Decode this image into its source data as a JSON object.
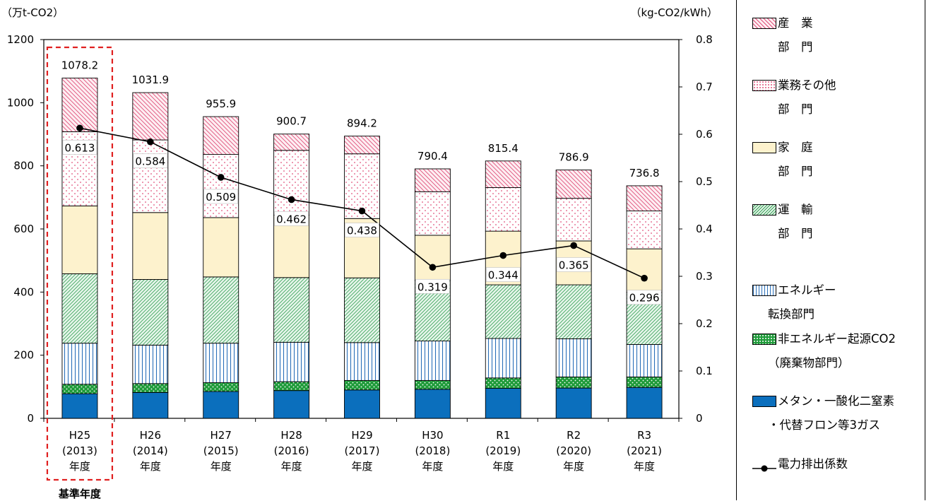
{
  "chart_data": {
    "type": "bar",
    "stacked": true,
    "left_axis_unit": "（万t-CO2）",
    "right_axis_unit": "（kg-CO2/kWh）",
    "ylim_left": [
      0,
      1200
    ],
    "yticks_left": [
      0,
      200,
      400,
      600,
      800,
      1000,
      1200
    ],
    "ylim_right": [
      0,
      0.8
    ],
    "yticks_right": [
      "0",
      "0.1",
      "0.2",
      "0.3",
      "0.4",
      "0.5",
      "0.6",
      "0.7",
      "0.8"
    ],
    "categories": [
      [
        "H25",
        "(2013)",
        "年度"
      ],
      [
        "H26",
        "(2014)",
        "年度"
      ],
      [
        "H27",
        "(2015)",
        "年度"
      ],
      [
        "H28",
        "(2016)",
        "年度"
      ],
      [
        "H29",
        "(2017)",
        "年度"
      ],
      [
        "H30",
        "(2018)",
        "年度"
      ],
      [
        "R1",
        "(2019)",
        "年度"
      ],
      [
        "R2",
        "(2020)",
        "年度"
      ],
      [
        "R3",
        "(2021)",
        "年度"
      ]
    ],
    "totals": [
      "1078.2",
      "1031.9",
      "955.9",
      "900.7",
      "894.2",
      "790.4",
      "815.4",
      "786.9",
      "736.8"
    ],
    "series": [
      {
        "name": "メタン・一酸化二窒素・代替フロン等3ガス",
        "color": "#0b6fbd",
        "values": [
          78,
          82,
          85,
          88,
          90,
          92,
          95,
          96,
          98
        ]
      },
      {
        "name": "非エネルギー起源CO2（廃棄物部門）",
        "color": "#1f9b3a",
        "values": [
          30,
          28,
          28,
          28,
          30,
          28,
          33,
          35,
          33
        ]
      },
      {
        "name": "エネルギー転換部門",
        "color": "#2a6fb8",
        "values": [
          130,
          122,
          125,
          125,
          120,
          125,
          125,
          121,
          103
        ]
      },
      {
        "name": "運輸部門",
        "color": "#3aa35a",
        "values": [
          220,
          208,
          210,
          205,
          205,
          192,
          170,
          171,
          165
        ]
      },
      {
        "name": "家庭部門",
        "color": "#fdf2cd",
        "values": [
          215,
          212,
          188,
          198,
          188,
          143,
          170,
          139,
          138
        ]
      },
      {
        "name": "業務その他部門",
        "color": "#e0507a",
        "values": [
          235,
          230,
          200,
          205,
          205,
          138,
          138,
          135,
          120
        ]
      },
      {
        "name": "産業部門",
        "color": "#e0507a",
        "values": [
          170.2,
          149.9,
          119.9,
          51.7,
          56.2,
          72.4,
          84.4,
          89.9,
          79.8
        ]
      }
    ],
    "line": {
      "name": "電力排出係数",
      "values": [
        0.613,
        0.584,
        0.509,
        0.462,
        0.438,
        0.319,
        0.344,
        0.365,
        0.296
      ],
      "labels": [
        "0.613",
        "0.584",
        "0.509",
        "0.462",
        "0.438",
        "0.319",
        "0.344",
        "0.365",
        "0.296"
      ]
    },
    "annotation": "基準年度"
  },
  "legend": [
    {
      "key": "industry",
      "line1": "産　業",
      "line2": "部　門"
    },
    {
      "key": "commercial",
      "line1": "業務その他",
      "line2": "部　門"
    },
    {
      "key": "household",
      "line1": "家　庭",
      "line2": "部　門"
    },
    {
      "key": "transport",
      "line1": "運　輸",
      "line2": "部　門"
    },
    {
      "key": "energy",
      "line1": "エネルギー",
      "line2": "転換部門"
    },
    {
      "key": "nonenergy",
      "line1": "非エネルギー起源CO2",
      "line2": "（廃棄物部門）"
    },
    {
      "key": "methane",
      "line1": "メタン・一酸化二窒素",
      "line2": "・代替フロン等3ガス"
    },
    {
      "key": "emission",
      "line1": "電力排出係数",
      "line2": ""
    }
  ]
}
